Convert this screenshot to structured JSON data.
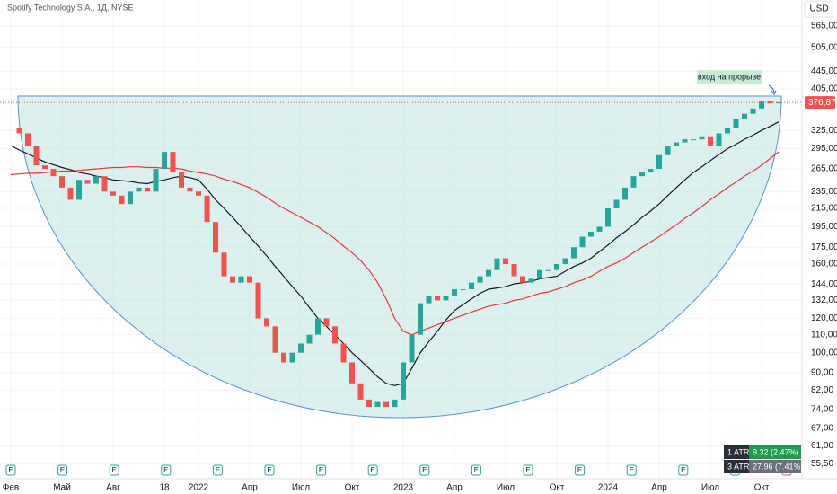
{
  "chart_data": {
    "type": "candlestick",
    "title": "Spotify Technology S.A., 1Д, NYSE",
    "currency": "USD",
    "annotation": "вход на прорыве",
    "log_scale": true,
    "ylim": [
      52,
      649
    ],
    "yticks": [
      {
        "value": 565,
        "label": "565,00"
      },
      {
        "value": 505,
        "label": "505,00"
      },
      {
        "value": 445,
        "label": "445,00"
      },
      {
        "value": 405,
        "label": "405,00"
      },
      {
        "value": 325,
        "label": "325,00"
      },
      {
        "value": 295,
        "label": "295,00"
      },
      {
        "value": 265,
        "label": "265,00"
      },
      {
        "value": 235,
        "label": "235,00"
      },
      {
        "value": 215,
        "label": "215,00"
      },
      {
        "value": 195,
        "label": "195,00"
      },
      {
        "value": 175,
        "label": "175,00"
      },
      {
        "value": 160,
        "label": "160,00"
      },
      {
        "value": 144,
        "label": "144,00"
      },
      {
        "value": 132,
        "label": "132,00"
      },
      {
        "value": 120,
        "label": "120,00"
      },
      {
        "value": 110,
        "label": "110,00"
      },
      {
        "value": 100,
        "label": "100,00"
      },
      {
        "value": 90,
        "label": "90,00"
      },
      {
        "value": 82,
        "label": "82,00"
      },
      {
        "value": 74,
        "label": "74,00"
      },
      {
        "value": 67,
        "label": "67,00"
      },
      {
        "value": 61,
        "label": "61,00"
      },
      {
        "value": 55.5,
        "label": "55,50"
      }
    ],
    "last_price": {
      "value": 376.87,
      "label": "376,87"
    },
    "categories": [
      "Фев",
      null,
      null,
      null,
      null,
      null,
      "Май",
      null,
      null,
      null,
      null,
      null,
      "Авг",
      null,
      null,
      null,
      null,
      null,
      "18",
      null,
      null,
      null,
      "2022",
      null,
      null,
      null,
      null,
      null,
      "Апр",
      null,
      null,
      null,
      null,
      null,
      "Июл",
      null,
      null,
      null,
      null,
      null,
      "Окт",
      null,
      null,
      null,
      null,
      null,
      "2023",
      null,
      null,
      null,
      null,
      null,
      "Апр",
      null,
      null,
      null,
      null,
      null,
      "Июл",
      null,
      null,
      null,
      null,
      null,
      "Окт",
      null,
      null,
      null,
      null,
      null,
      "2024",
      null,
      null,
      null,
      null,
      null,
      "Апр",
      null,
      null,
      null,
      null,
      null,
      "Июл",
      null,
      null,
      null,
      null,
      null,
      "Окт",
      null,
      null
    ],
    "up_color": "#26a69a",
    "down_color": "#ef5350",
    "values": [
      330,
      320,
      300,
      270,
      265,
      255,
      240,
      225,
      250,
      245,
      255,
      235,
      230,
      220,
      235,
      240,
      235,
      265,
      290,
      260,
      240,
      235,
      230,
      200,
      170,
      150,
      145,
      150,
      145,
      120,
      115,
      100,
      95,
      100,
      105,
      110,
      120,
      115,
      105,
      95,
      85,
      78,
      75,
      77,
      75,
      78,
      95,
      110,
      130,
      135,
      132,
      135,
      140,
      140,
      145,
      150,
      155,
      165,
      160,
      150,
      145,
      148,
      155,
      155,
      160,
      165,
      175,
      185,
      190,
      195,
      215,
      225,
      240,
      255,
      260,
      265,
      285,
      300,
      305,
      310,
      310,
      315,
      300,
      320,
      330,
      345,
      355,
      365,
      380,
      375,
      376.87
    ],
    "series": [
      {
        "color": "#e53935",
        "values": [
          257,
          258,
          259,
          259,
          260,
          261,
          262,
          262,
          263,
          264,
          265,
          266,
          267,
          267,
          268,
          268,
          267,
          267,
          266,
          266,
          265,
          262,
          260,
          258,
          255,
          251,
          248,
          244,
          240,
          234,
          228,
          221,
          215,
          210,
          205,
          200,
          195,
          189,
          183,
          176,
          170,
          163,
          155,
          145,
          133,
          120,
          112,
          110,
          112,
          114,
          116,
          118,
          120,
          122,
          124,
          126,
          128,
          129,
          130,
          132,
          133,
          135,
          137,
          138,
          140,
          142,
          145,
          147,
          150,
          154,
          158,
          161,
          165,
          170,
          175,
          180,
          185,
          191,
          197,
          204,
          210,
          217,
          225,
          232,
          240,
          247,
          255,
          262,
          270,
          280,
          290
        ]
      },
      {
        "color": "#131722",
        "values": [
          300,
          293,
          287,
          281,
          275,
          271,
          267,
          264,
          260,
          258,
          255,
          253,
          250,
          249,
          248,
          246,
          245,
          248,
          250,
          253,
          255,
          253,
          250,
          238,
          225,
          215,
          205,
          195,
          185,
          176,
          167,
          158,
          150,
          142,
          135,
          127,
          120,
          115,
          110,
          105,
          100,
          96,
          92,
          88,
          85,
          84,
          85,
          92,
          100,
          106,
          112,
          119,
          125,
          129,
          133,
          137,
          140,
          141,
          142,
          144,
          145,
          146,
          148,
          149,
          150,
          154,
          158,
          161,
          165,
          171,
          177,
          184,
          190,
          197,
          205,
          212,
          220,
          230,
          240,
          250,
          260,
          268,
          277,
          286,
          295,
          302,
          310,
          317,
          325,
          332,
          340
        ]
      }
    ],
    "earnings_marks": [
      "E",
      "E",
      "E",
      "E",
      "E",
      "E",
      "E",
      "E",
      "E",
      "E",
      "E",
      "E",
      "E",
      "E",
      "E",
      "E"
    ],
    "atr": [
      {
        "name": "1 ATR",
        "label": "9.32 (2.47%)"
      },
      {
        "name": "3 ATR",
        "label": "27.96 (7.41%)"
      }
    ]
  }
}
